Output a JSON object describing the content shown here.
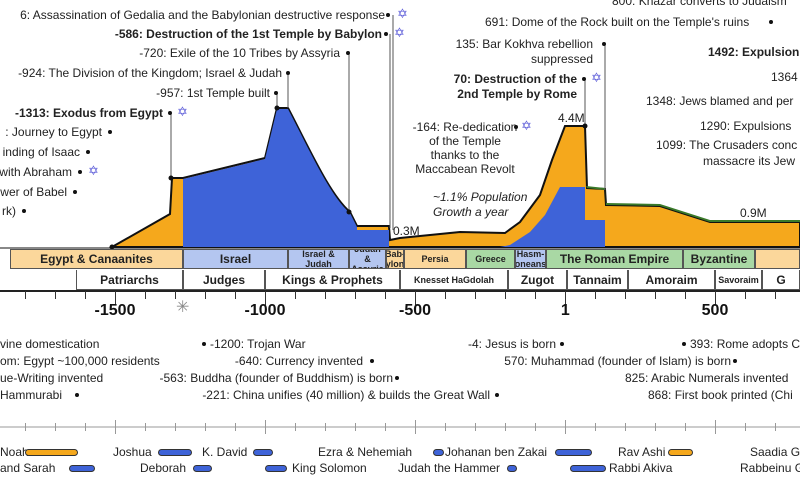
{
  "colors": {
    "orange": "#f5a81c",
    "blue": "#3e63d8",
    "green": "#3a7a2a",
    "star": "#5a5ad8",
    "band_orange": "#fbd79b",
    "band_blue": "#b4c6f0",
    "band_green": "#a9d8a4"
  },
  "top_events": [
    {
      "text": "6: Assassination of Gedalia and the Babylonian destructive response",
      "star": true
    },
    {
      "text": "-586: Destruction of the 1st Temple by Babylon",
      "bold": true,
      "star": true
    },
    {
      "text": "-720: Exile of the 10 Tribes by Assyria"
    },
    {
      "text": "-924: The Division of the Kingdom; Israel & Judah"
    },
    {
      "text": "-957: 1st Temple built"
    },
    {
      "text": "-1313: Exodus from Egypt",
      "bold": true,
      "star": true
    },
    {
      "text": ": Journey to Egypt"
    },
    {
      "text": "inding of Isaac"
    },
    {
      "text": "with Abraham",
      "star": true
    },
    {
      "text": "wer of Babel"
    },
    {
      "text": "rk)"
    },
    {
      "text": "800: Khazar converts to Judaism"
    },
    {
      "text": "691: Dome of the Rock built on the Temple's ruins"
    },
    {
      "text": "135: Bar Kokhva rebellion"
    },
    {
      "text": "suppressed"
    },
    {
      "text": "70: Destruction of the",
      "bold": true,
      "star": true
    },
    {
      "text": "2nd Temple by Rome",
      "bold": true
    },
    {
      "text": "-164:  Re-dedication",
      "star": true
    },
    {
      "text": "of the Temple"
    },
    {
      "text": "thanks to the"
    },
    {
      "text": "Maccabean Revolt"
    },
    {
      "text": "1492: Expulsion",
      "bold": true
    },
    {
      "text": "1364"
    },
    {
      "text": "1348: Jews blamed and per"
    },
    {
      "text": "1290: Expulsions"
    },
    {
      "text": "1099: The Crusaders conc"
    },
    {
      "text": "massacre its Jew"
    }
  ],
  "annotations": {
    "growth_line1": "~1.1% Population",
    "growth_line2": "Growth a year",
    "pop_peak": "4.4M",
    "pop_low": "0.3M",
    "pop_medieval": "0.9M"
  },
  "eras_row1": [
    "Egypt & Canaanites",
    "Israel",
    "Israel & Judah",
    "Judah & Assyria",
    "Bab-ylon",
    "Persia",
    "Greece",
    "Hasm-oneans",
    "The Roman Empire",
    "Byzantine",
    ""
  ],
  "eras_row2": [
    "Patriarchs",
    "Judges",
    "Kings & Prophets",
    "Knesset HaGdolah",
    "Zugot",
    "Tannaim",
    "Amoraim",
    "Savoraim",
    "G"
  ],
  "axis_labels": [
    "-1500",
    "-1000",
    "-500",
    "1",
    "500"
  ],
  "asterisk": "✳",
  "world_events": [
    "vine domestication",
    "om:  Egypt ~100,000 residents",
    "ue-Writing invented",
    "Hammurabi",
    "-1200: Trojan War",
    "-640: Currency invented",
    "-563: Buddha (founder of Buddhism) is born",
    "-221: China unifies (40 million) & builds the Great Wall",
    "-4: Jesus is born",
    "570: Muhammad (founder of Islam) is born",
    "393: Rome adopts C",
    "825: Arabic Numerals invented",
    "868: First book printed (Chi"
  ],
  "people": [
    {
      "name": "Noah",
      "color": "orange"
    },
    {
      "name": "Joshua",
      "color": "blue"
    },
    {
      "name": "K. David",
      "color": "blue"
    },
    {
      "name": "Ezra & Nehemiah",
      "color": "blue"
    },
    {
      "name": "Johanan ben Zakai",
      "color": "blue"
    },
    {
      "name": "Rav Ashi",
      "color": "orange"
    },
    {
      "name": "Saadia G",
      "color": "none"
    },
    {
      "name": "and Sarah",
      "color": "blue"
    },
    {
      "name": "Deborah",
      "color": "blue"
    },
    {
      "name": "King Solomon",
      "color": "blue"
    },
    {
      "name": "Judah the Hammer",
      "color": "blue"
    },
    {
      "name": "Rabbi Akiva",
      "color": "blue"
    },
    {
      "name": "Rabbeinu G",
      "color": "none"
    }
  ]
}
